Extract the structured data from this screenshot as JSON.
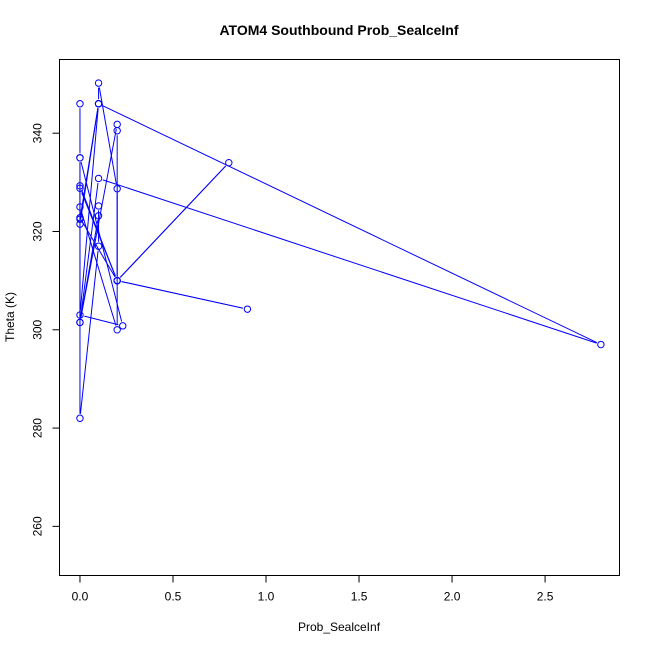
{
  "chart_data": {
    "type": "line",
    "title": "ATOM4 Southbound Prob_SealceInf",
    "xlabel": "Prob_SealceInf",
    "ylabel": "Theta (K)",
    "xlim": [
      -0.11,
      2.9
    ],
    "ylim": [
      250,
      355
    ],
    "x_ticks": [
      0.0,
      0.5,
      1.0,
      1.5,
      2.0,
      2.5
    ],
    "x_tick_labels": [
      "0.0",
      "0.5",
      "1.0",
      "1.5",
      "2.0",
      "2.5"
    ],
    "y_ticks": [
      260,
      280,
      300,
      320,
      340
    ],
    "y_tick_labels": [
      "260",
      "280",
      "300",
      "320",
      "340"
    ],
    "grid": false,
    "color": "#0000ff",
    "series": [
      {
        "x": [
          0.0,
          0.0,
          0.0,
          0.2,
          0.2,
          0.2,
          0.0,
          0.0,
          0.1,
          0.1,
          0.2,
          0.2,
          0.0,
          0.0,
          0.2,
          0.8,
          0.2,
          0.9,
          0.2,
          0.0,
          0.0,
          0.1,
          0.1,
          0.1,
          0.0,
          0.1,
          2.8,
          0.1,
          0.0,
          0.0,
          0.23,
          0.0,
          0.1
        ],
        "y": [
          346,
          335,
          301.5,
          341.8,
          340.5,
          310,
          322.8,
          321.5,
          346,
          350.2,
          328.7,
          300,
          325,
          328.8,
          310,
          334,
          310,
          304.2,
          310,
          329.3,
          282,
          317,
          325.2,
          323.2,
          301.5,
          330.8,
          297,
          346,
          322.5,
          335,
          300.8,
          303,
          346
        ]
      }
    ]
  }
}
